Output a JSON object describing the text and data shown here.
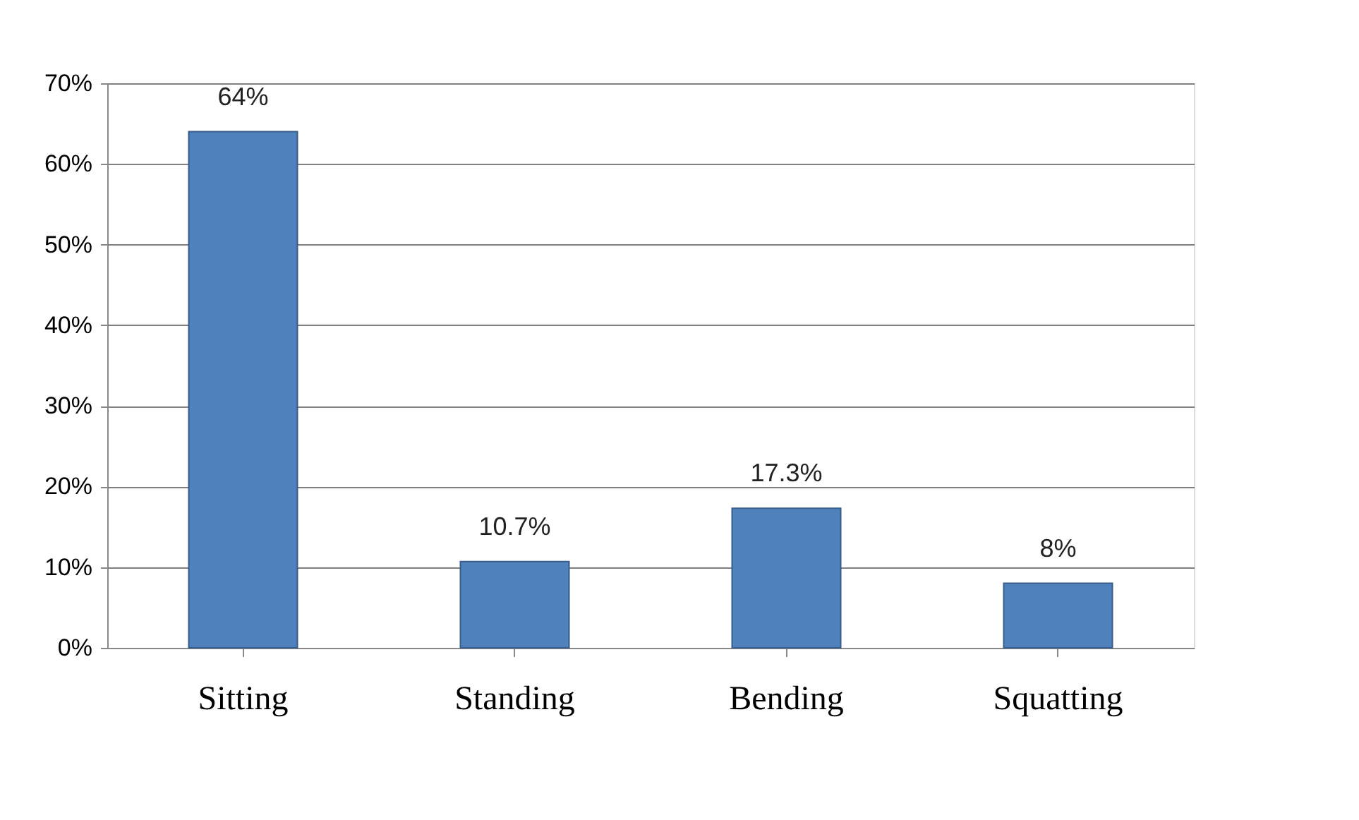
{
  "chart_data": {
    "type": "bar",
    "categories": [
      "Sitting",
      "Standing",
      "Bending",
      "Squatting"
    ],
    "values": [
      64,
      10.7,
      17.3,
      8
    ],
    "color": "#4f81bd",
    "value_labels": [
      "64%",
      "10.7%",
      "17.3%",
      "8%"
    ],
    "ylim": [
      0,
      70
    ],
    "yticks": [
      {
        "value": 0,
        "label": "0%"
      },
      {
        "value": 10,
        "label": "10%"
      },
      {
        "value": 20,
        "label": "20%"
      },
      {
        "value": 30,
        "label": "30%"
      },
      {
        "value": 40,
        "label": "40%"
      },
      {
        "value": 50,
        "label": "50%"
      },
      {
        "value": 60,
        "label": "60%"
      },
      {
        "value": 70,
        "label": "70%"
      }
    ],
    "grid": "y"
  }
}
